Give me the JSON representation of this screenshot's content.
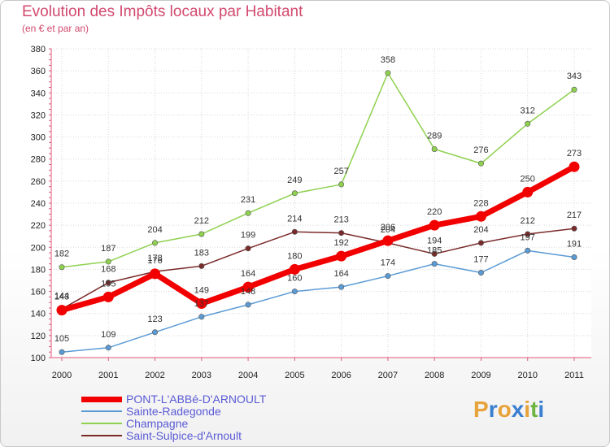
{
  "header": {
    "title": "Evolution des Impôts locaux par Habitant",
    "subtitle": "(en € et par an)"
  },
  "logo": {
    "text": "Proxiti",
    "letters": [
      "P",
      "r",
      "o",
      "x",
      "i",
      "t",
      "i"
    ],
    "colors": [
      "#e8a23a",
      "#3a7fd0",
      "#e8a23a",
      "#3a7fd0",
      "#e8a23a",
      "#6cb33f",
      "#3a7fd0"
    ]
  },
  "chart_data": {
    "type": "line",
    "title": "Evolution des Impôts locaux par Habitant",
    "subtitle": "(en € et par an)",
    "xlabel": "",
    "ylabel": "",
    "x": [
      "2000",
      "2001",
      "2002",
      "2003",
      "2004",
      "2005",
      "2006",
      "2007",
      "2008",
      "2009",
      "2010",
      "2011"
    ],
    "ylim": [
      100,
      380
    ],
    "yticks": [
      100,
      120,
      140,
      160,
      180,
      200,
      220,
      240,
      260,
      280,
      300,
      320,
      340,
      360,
      380
    ],
    "grid": true,
    "series": [
      {
        "name": "Sainte-Radegonde",
        "color": "#5b9bd5",
        "values": [
          105,
          109,
          123,
          137,
          148,
          160,
          164,
          174,
          185,
          177,
          197,
          191
        ],
        "labels": [
          "105",
          "109",
          "123",
          "137",
          "148",
          "160",
          "164",
          "174",
          "185",
          "177",
          "197",
          "191"
        ]
      },
      {
        "name": "Champagne",
        "color": "#8fd14f",
        "values": [
          182,
          187,
          204,
          212,
          231,
          249,
          257,
          358,
          289,
          276,
          312,
          343
        ],
        "labels": [
          "182",
          "187",
          "204",
          "212",
          "231",
          "249",
          "257",
          "358",
          "289",
          "276",
          "312",
          "343"
        ]
      },
      {
        "name": "Saint-Sulpice-d'Arnoult",
        "color": "#7b2a2a",
        "values": [
          144,
          168,
          178,
          183,
          199,
          214,
          213,
          204,
          194,
          204,
          212,
          217
        ],
        "labels": [
          "144",
          "168",
          "178",
          "183",
          "199",
          "214",
          "213",
          "204",
          "194",
          "204",
          "212",
          "217"
        ]
      },
      {
        "name": "PONT-L'ABBé-D'ARNOULT",
        "color": "#f20000",
        "values": [
          143,
          155,
          176,
          149,
          164,
          180,
          192,
          206,
          220,
          228,
          250,
          273
        ],
        "labels": [
          "143",
          "155",
          "176",
          "149",
          "164",
          "180",
          "192",
          "206",
          "220",
          "228",
          "250",
          "273"
        ]
      }
    ],
    "legend": [
      {
        "name": "PONT-L'ABBé-D'ARNOULT",
        "color": "#f20000"
      },
      {
        "name": "Sainte-Radegonde",
        "color": "#5b9bd5"
      },
      {
        "name": "Champagne",
        "color": "#8fd14f"
      },
      {
        "name": "Saint-Sulpice-d'Arnoult",
        "color": "#7b2a2a"
      }
    ],
    "legend_position": "bottom-left"
  }
}
